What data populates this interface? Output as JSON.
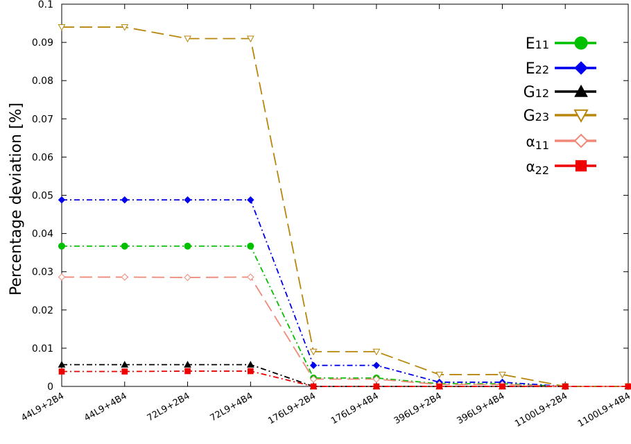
{
  "chart_data": {
    "type": "line",
    "title": "",
    "ylabel": "Percentage deviation [%]",
    "xlabel": "",
    "categories": [
      "44L9+2B4",
      "44L9+4B4",
      "72L9+2B4",
      "72L9+4B4",
      "176L9+2B4",
      "176L9+4B4",
      "396L9+2B4",
      "396L9+4B4",
      "1100L9+2B4",
      "1100L9+4B4"
    ],
    "ylim": [
      0,
      0.1
    ],
    "yticks": [
      "0",
      "0.01",
      "0.02",
      "0.03",
      "0.04",
      "0.05",
      "0.06",
      "0.07",
      "0.08",
      "0.09",
      "0.1"
    ],
    "grid": false,
    "legend_position": "top-right",
    "series": [
      {
        "name": "E11",
        "color": "#00c000",
        "marker": "circle",
        "dash": "dash-dot",
        "values": [
          0.0367,
          0.0367,
          0.0367,
          0.0367,
          0.0022,
          0.0022,
          0.0007,
          0.0007,
          0.0,
          0.0
        ]
      },
      {
        "name": "E22",
        "color": "#0000ee",
        "marker": "diamond",
        "dash": "dash-dot",
        "values": [
          0.0488,
          0.0488,
          0.0488,
          0.0488,
          0.0055,
          0.0055,
          0.0011,
          0.0011,
          0.0,
          0.0
        ]
      },
      {
        "name": "G12",
        "color": "#000000",
        "marker": "triangle",
        "dash": "dash-dot",
        "values": [
          0.0057,
          0.0057,
          0.0057,
          0.0057,
          0.0,
          0.0,
          0.0,
          0.0,
          0.0,
          0.0
        ]
      },
      {
        "name": "G23",
        "color": "#b8860b",
        "marker": "triangle-down-open",
        "dash": "long-dash",
        "values": [
          0.094,
          0.094,
          0.091,
          0.091,
          0.0091,
          0.0091,
          0.0031,
          0.0031,
          0.0,
          0.0
        ]
      },
      {
        "name": "α11",
        "color": "#f08878",
        "marker": "diamond-open",
        "dash": "long-dash",
        "values": [
          0.0286,
          0.0286,
          0.0285,
          0.0286,
          0.0019,
          0.0019,
          0.0005,
          0.0005,
          0.0,
          0.0
        ]
      },
      {
        "name": "α22",
        "color": "#ee0000",
        "marker": "square",
        "dash": "dash-dot",
        "values": [
          0.0039,
          0.0039,
          0.004,
          0.004,
          0.0,
          0.0,
          0.0,
          0.0,
          0.0,
          0.0
        ]
      }
    ]
  },
  "legend": [
    {
      "base": "E",
      "sub": "11"
    },
    {
      "base": "E",
      "sub": "22"
    },
    {
      "base": "G",
      "sub": "12"
    },
    {
      "base": "G",
      "sub": "23"
    },
    {
      "base": "α",
      "sub": "11"
    },
    {
      "base": "α",
      "sub": "22"
    }
  ]
}
